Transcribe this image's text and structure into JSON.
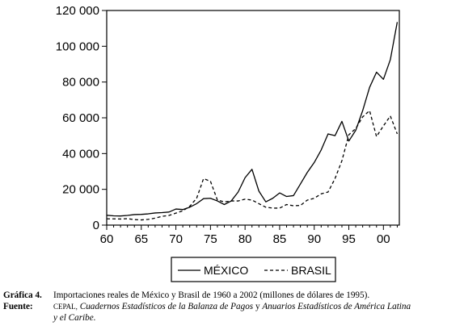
{
  "chart_data": {
    "type": "line",
    "x": [
      1960,
      1961,
      1962,
      1963,
      1964,
      1965,
      1966,
      1967,
      1968,
      1969,
      1970,
      1971,
      1972,
      1973,
      1974,
      1975,
      1976,
      1977,
      1978,
      1979,
      1980,
      1981,
      1982,
      1983,
      1984,
      1985,
      1986,
      1987,
      1988,
      1989,
      1990,
      1991,
      1992,
      1993,
      1994,
      1995,
      1996,
      1997,
      1998,
      1999,
      2000,
      2001,
      2002
    ],
    "series": [
      {
        "name": "MÉXICO",
        "style": "solid",
        "values": [
          5500,
          5200,
          5100,
          5400,
          5900,
          6000,
          6300,
          6800,
          7000,
          7300,
          9000,
          8700,
          10000,
          12000,
          14800,
          15000,
          13500,
          11500,
          13500,
          18500,
          26500,
          31200,
          19000,
          13000,
          15000,
          18000,
          16000,
          16500,
          23000,
          29500,
          35000,
          42000,
          51000,
          50000,
          58000,
          47000,
          53000,
          64000,
          77000,
          85500,
          81500,
          92500,
          113500
        ]
      },
      {
        "name": "BRASIL",
        "style": "dashed",
        "values": [
          3500,
          3500,
          3400,
          3600,
          3100,
          2900,
          3200,
          3900,
          4900,
          5400,
          6700,
          8000,
          10500,
          15000,
          26000,
          24500,
          14000,
          13000,
          13500,
          13500,
          14500,
          14000,
          12000,
          10000,
          9500,
          9500,
          11500,
          10800,
          11000,
          14000,
          15000,
          17500,
          18500,
          26000,
          36000,
          50500,
          54000,
          60500,
          64000,
          49500,
          55500,
          61000,
          51000
        ]
      }
    ],
    "xticks": [
      1960,
      1965,
      1970,
      1975,
      1980,
      1985,
      1990,
      1995,
      2000
    ],
    "xtick_labels": [
      "60",
      "65",
      "70",
      "75",
      "80",
      "85",
      "90",
      "95",
      "00"
    ],
    "yticks": [
      0,
      20000,
      40000,
      60000,
      80000,
      100000,
      120000
    ],
    "ytick_labels": [
      "0",
      "20 000",
      "40 000",
      "60 000",
      "80 000",
      "100 000",
      "120 000"
    ],
    "xlim": [
      1960,
      2002.3
    ],
    "ylim": [
      0,
      120000
    ],
    "grid": false,
    "legend_position": "bottom-center",
    "colors": {
      "line": "#000000",
      "background": "#ffffff"
    }
  },
  "caption": {
    "figure_label": "Gráfica 4.",
    "figure_text": "Importaciones reales de México y Brasil de 1960 a 2002 (millones de dólares de 1995).",
    "source_label": "Fuente:",
    "source_org": "CEPAL,",
    "source_pub1": "Cuadernos Estadísticos de la Balanza de Pagos",
    "source_and": "y",
    "source_pub2": "Anuarios Estadísticos de América Latina",
    "source_line2": "y el Caribe."
  }
}
